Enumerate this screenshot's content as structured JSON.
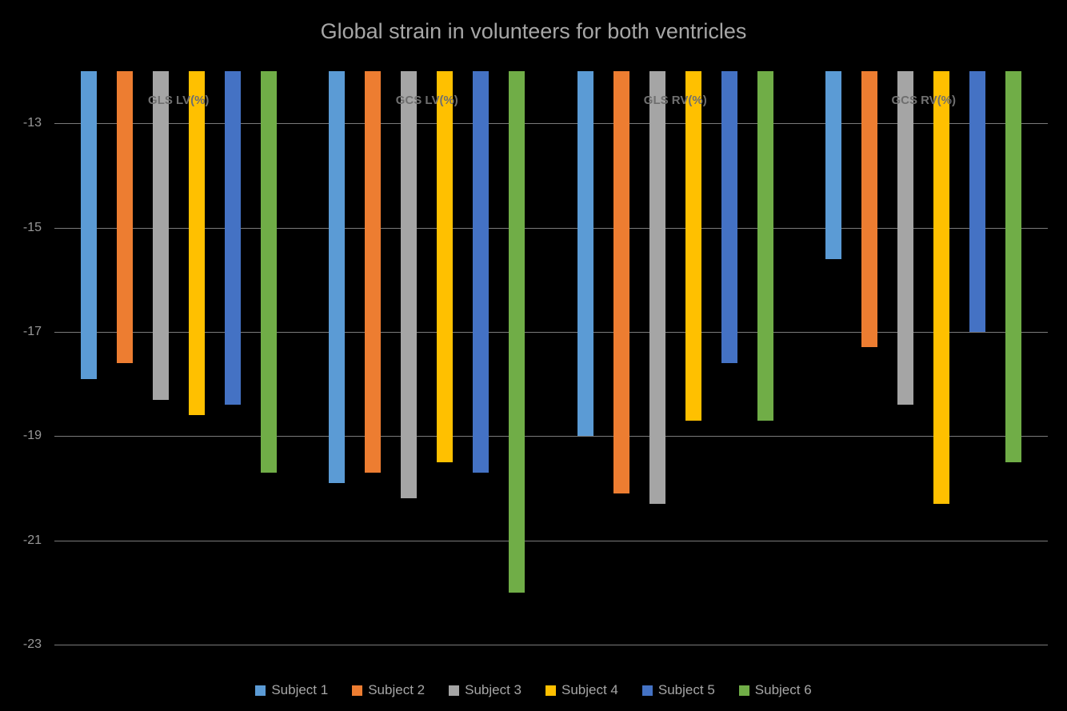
{
  "chart_data": {
    "type": "bar",
    "title": "Global strain in volunteers for both ventricles",
    "categories": [
      "GLS LV(%)",
      "GCS LV(%)",
      "GLS RV(%)",
      "GCS RV(%)"
    ],
    "series": [
      {
        "name": "Subject 1",
        "color": "#5B9BD5",
        "values": [
          -17.9,
          -19.9,
          -19.0,
          -15.6
        ]
      },
      {
        "name": "Subject 2",
        "color": "#ED7D31",
        "values": [
          -17.6,
          -19.7,
          -20.1,
          -17.3
        ]
      },
      {
        "name": "Subject 3",
        "color": "#A5A5A5",
        "values": [
          -18.3,
          -20.2,
          -20.3,
          -18.4
        ]
      },
      {
        "name": "Subject 4",
        "color": "#FFC000",
        "values": [
          -18.6,
          -19.5,
          -18.7,
          -20.3
        ]
      },
      {
        "name": "Subject 5",
        "color": "#4472C4",
        "values": [
          -18.4,
          -19.7,
          -17.6,
          -17.0
        ]
      },
      {
        "name": "Subject 6",
        "color": "#70AD47",
        "values": [
          -19.7,
          -22.0,
          -18.7,
          -19.5
        ]
      }
    ],
    "y_ticks": [
      -13,
      -15,
      -17,
      -19,
      -21,
      -23
    ],
    "y_axis_top": -12,
    "y_axis_bottom": -23,
    "ylim": [
      -23,
      -12
    ],
    "xlabel": "",
    "ylabel": "",
    "grid": true,
    "legend_position": "bottom",
    "background_color": "#000000",
    "text_color": "#a6a6a6",
    "gridline_color": "#7a7a7a"
  }
}
